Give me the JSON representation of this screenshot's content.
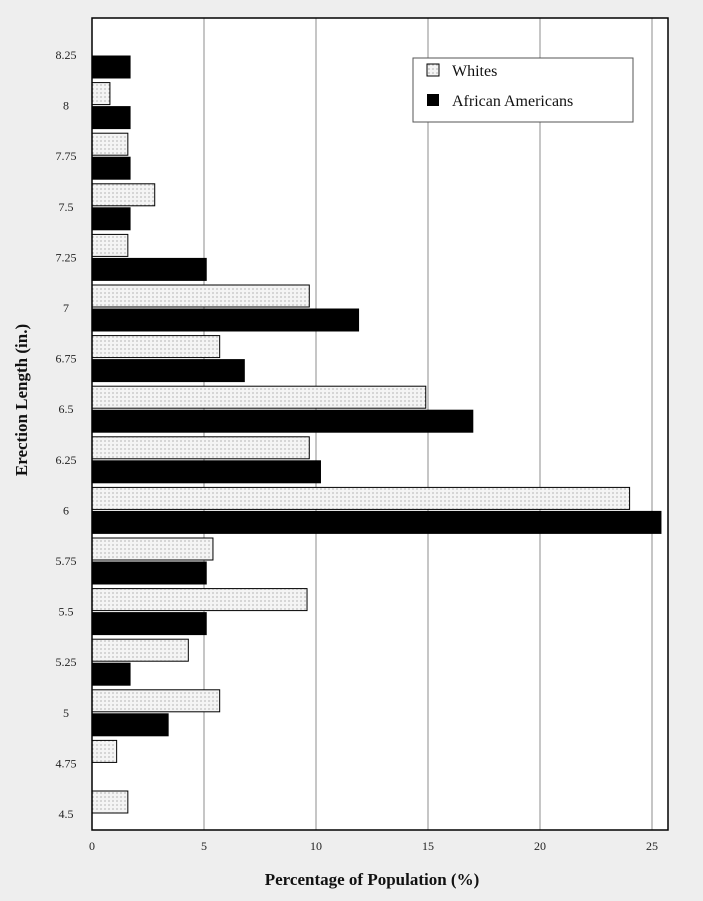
{
  "chart_data": {
    "type": "bar",
    "orientation": "horizontal",
    "xlabel": "Percentage of Population (%)",
    "ylabel": "Erection Length (in.)",
    "xlim": [
      0,
      25
    ],
    "x_ticks": [
      "0",
      "5",
      "10",
      "15",
      "20",
      "25"
    ],
    "grid": "vertical",
    "legend_position": "top-right",
    "categories": [
      "8.25",
      "8",
      "7.75",
      "7.5",
      "7.25",
      "7",
      "6.75",
      "6.5",
      "6.25",
      "6",
      "5.75",
      "5.5",
      "5.25",
      "5",
      "4.75",
      "4.5"
    ],
    "series": [
      {
        "name": "Whites",
        "color": "#f2f2f2",
        "pattern": "dotted",
        "values": [
          0,
          0.8,
          1.6,
          2.8,
          1.6,
          9.7,
          5.7,
          14.9,
          9.7,
          24.0,
          5.4,
          9.6,
          4.3,
          5.7,
          1.1,
          1.6
        ]
      },
      {
        "name": "African Americans",
        "color": "#000000",
        "pattern": "solid",
        "values": [
          1.7,
          1.7,
          1.7,
          1.7,
          5.1,
          11.9,
          6.8,
          17.0,
          10.2,
          25.4,
          5.1,
          5.1,
          1.7,
          3.4,
          0,
          0
        ]
      }
    ]
  }
}
